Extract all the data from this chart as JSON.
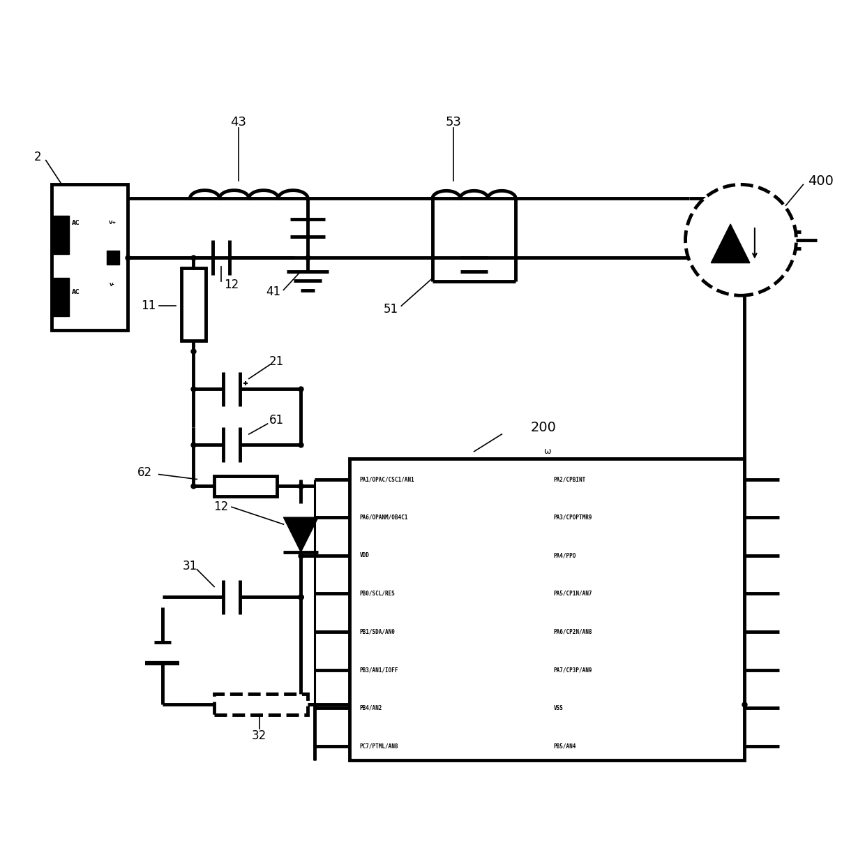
{
  "fig_width": 12.4,
  "fig_height": 12.32,
  "bg_color": "#ffffff",
  "lc": "#000000",
  "lw": 2.2,
  "lw_thick": 3.5,
  "mcu_pins_left": [
    "PA1/OPAC/CSC1/AN1  PA2/CPBINT",
    "PA6/OPANM/OB4C1   PA3/CPOPTMR9",
    "VDD                          PA4/PPO",
    "PB0/SCL/RES         PA5/CP1N/AN7",
    "PB1/SDA/AN0         PA6/CP2N/AN8",
    "PB3/AN1/IOFF        PA7/CP3P/AN9",
    "PB4/AN2                       VSS",
    "PC7/PTML/AN8        PB5/AN4"
  ]
}
